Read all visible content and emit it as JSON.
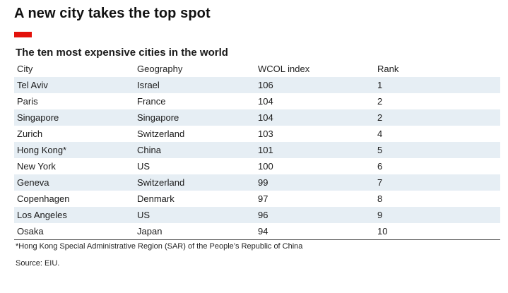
{
  "title": "A new city takes the top spot",
  "accent_color": "#e3120b",
  "chart_data": {
    "type": "table",
    "title": "The ten most expensive cities in the world",
    "columns": [
      "City",
      "Geography",
      "WCOL index",
      "Rank"
    ],
    "rows": [
      [
        "Tel Aviv",
        "Israel",
        "106",
        "1"
      ],
      [
        "Paris",
        "France",
        "104",
        "2"
      ],
      [
        "Singapore",
        "Singapore",
        "104",
        "2"
      ],
      [
        "Zurich",
        "Switzerland",
        "103",
        "4"
      ],
      [
        "Hong Kong*",
        "China",
        "101",
        "5"
      ],
      [
        "New York",
        "US",
        "100",
        "6"
      ],
      [
        "Geneva",
        "Switzerland",
        "99",
        "7"
      ],
      [
        "Copenhagen",
        "Denmark",
        "97",
        "8"
      ],
      [
        "Los Angeles",
        "US",
        "96",
        "9"
      ],
      [
        "Osaka",
        "Japan",
        "94",
        "10"
      ]
    ],
    "row_shading": "#e6eef4"
  },
  "footnote": "*Hong Kong Special Administrative Region (SAR) of the People’s Republic of China",
  "source": "Source: EIU."
}
